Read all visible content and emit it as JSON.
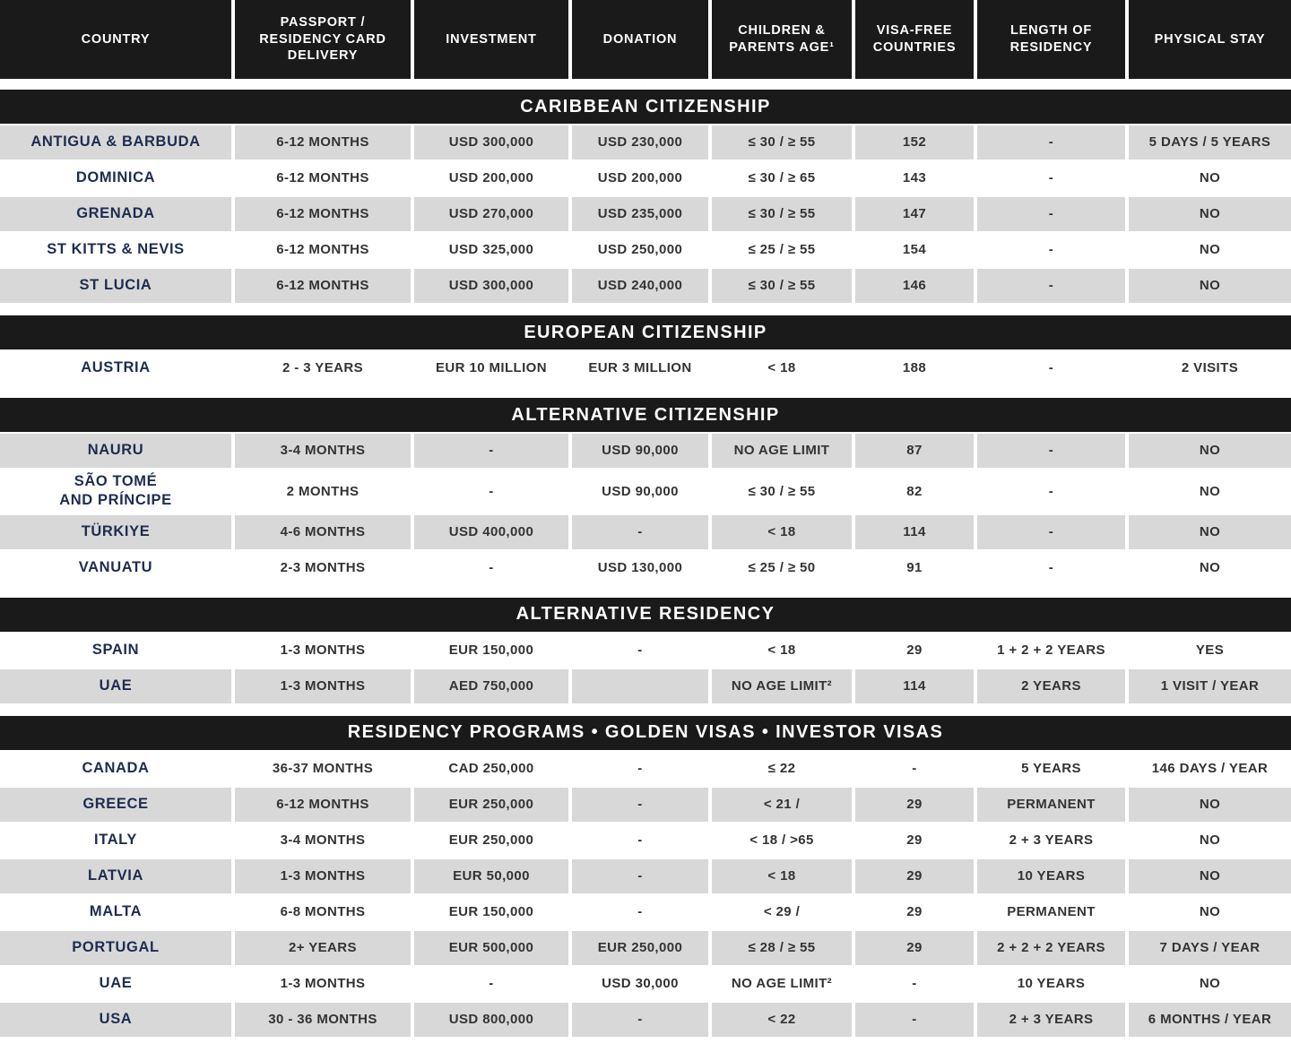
{
  "colors": {
    "banner_background": "#1a1a1a",
    "banner_text": "#ffffff",
    "row_shaded": "#d8d8d8",
    "row_plain": "#ffffff",
    "country_text": "#1d2d50",
    "data_text": "#333333"
  },
  "chart_data": {
    "type": "table",
    "columns": [
      "COUNTRY",
      "PASSPORT /\nRESIDENCY CARD\nDELIVERY",
      "INVESTMENT",
      "DONATION",
      "CHILDREN &\nPARENTS AGE¹",
      "VISA-FREE\nCOUNTRIES",
      "LENGTH OF\nRESIDENCY",
      "PHYSICAL STAY"
    ],
    "sections": [
      {
        "title": "CARIBBEAN CITIZENSHIP",
        "first_row_shaded": true,
        "rows": [
          {
            "cells": [
              "ANTIGUA & BARBUDA",
              "6-12 MONTHS",
              "USD 300,000",
              "USD 230,000",
              "≤ 30 / ≥ 55",
              "152",
              "-",
              "5 DAYS / 5 YEARS"
            ]
          },
          {
            "cells": [
              "DOMINICA",
              "6-12 MONTHS",
              "USD 200,000",
              "USD 200,000",
              "≤ 30 / ≥ 65",
              "143",
              "-",
              "NO"
            ]
          },
          {
            "cells": [
              "GRENADA",
              "6-12 MONTHS",
              "USD 270,000",
              "USD 235,000",
              "≤ 30 / ≥ 55",
              "147",
              "-",
              "NO"
            ]
          },
          {
            "cells": [
              "ST KITTS & NEVIS",
              "6-12 MONTHS",
              "USD 325,000",
              "USD 250,000",
              "≤ 25 / ≥ 55",
              "154",
              "-",
              "NO"
            ]
          },
          {
            "cells": [
              "ST LUCIA",
              "6-12 MONTHS",
              "USD 300,000",
              "USD 240,000",
              "≤ 30 / ≥ 55",
              "146",
              "-",
              "NO"
            ]
          }
        ]
      },
      {
        "title": "EUROPEAN CITIZENSHIP",
        "first_row_shaded": false,
        "rows": [
          {
            "cells": [
              "AUSTRIA",
              "2 - 3 YEARS",
              "EUR 10 MILLION",
              "EUR 3 MILLION",
              "< 18",
              "188",
              "-",
              "2 VISITS"
            ]
          }
        ]
      },
      {
        "title": "ALTERNATIVE CITIZENSHIP",
        "first_row_shaded": true,
        "rows": [
          {
            "cells": [
              "NAURU",
              "3-4 MONTHS",
              "-",
              "USD 90,000",
              "NO AGE LIMIT",
              "87",
              "-",
              "NO"
            ]
          },
          {
            "cells": [
              "SÃO TOMÉ\nAND PRÍNCIPE",
              "2 MONTHS",
              "-",
              "USD 90,000",
              "≤ 30 / ≥ 55",
              "82",
              "-",
              "NO"
            ]
          },
          {
            "cells": [
              "TÜRKIYE",
              "4-6 MONTHS",
              "USD 400,000",
              "-",
              "< 18",
              "114",
              "-",
              "NO"
            ]
          },
          {
            "cells": [
              "VANUATU",
              "2-3 MONTHS",
              "-",
              "USD 130,000",
              "≤ 25 / ≥ 50",
              "91",
              "-",
              "NO"
            ]
          }
        ]
      },
      {
        "title": "ALTERNATIVE RESIDENCY",
        "first_row_shaded": false,
        "rows": [
          {
            "cells": [
              "SPAIN",
              "1-3 MONTHS",
              "EUR 150,000",
              "-",
              "< 18",
              "29",
              "1 + 2 + 2 YEARS",
              "YES"
            ]
          },
          {
            "cells": [
              "UAE",
              "1-3 MONTHS",
              "AED 750,000",
              "",
              "NO AGE LIMIT²",
              "114",
              "2 YEARS",
              "1 VISIT / YEAR"
            ]
          }
        ]
      },
      {
        "title": "RESIDENCY PROGRAMS • GOLDEN VISAS • INVESTOR VISAS",
        "first_row_shaded": false,
        "rows": [
          {
            "cells": [
              "CANADA",
              "36-37 MONTHS",
              "CAD 250,000",
              "-",
              "≤ 22",
              "-",
              "5 YEARS",
              "146 DAYS / YEAR"
            ]
          },
          {
            "cells": [
              "GREECE",
              "6-12 MONTHS",
              "EUR 250,000",
              "-",
              "< 21 /",
              "29",
              "PERMANENT",
              "NO"
            ]
          },
          {
            "cells": [
              "ITALY",
              "3-4 MONTHS",
              "EUR 250,000",
              "-",
              "< 18 / >65",
              "29",
              "2 + 3 YEARS",
              "NO"
            ]
          },
          {
            "cells": [
              "LATVIA",
              "1-3 MONTHS",
              "EUR 50,000",
              "-",
              "< 18",
              "29",
              "10 YEARS",
              "NO"
            ]
          },
          {
            "cells": [
              "MALTA",
              "6-8 MONTHS",
              "EUR 150,000",
              "-",
              "< 29 /",
              "29",
              "PERMANENT",
              "NO"
            ]
          },
          {
            "cells": [
              "PORTUGAL",
              "2+ YEARS",
              "EUR 500,000",
              "EUR 250,000",
              "≤ 28 / ≥ 55",
              "29",
              "2 + 2 + 2 YEARS",
              "7 DAYS / YEAR"
            ]
          },
          {
            "cells": [
              "UAE",
              "1-3 MONTHS",
              "-",
              "USD 30,000",
              "NO AGE LIMIT²",
              "-",
              "10 YEARS",
              "NO"
            ]
          },
          {
            "cells": [
              "USA",
              "30 - 36 MONTHS",
              "USD 800,000",
              "-",
              "< 22",
              "-",
              "2 + 3 YEARS",
              "6 MONTHS / YEAR"
            ]
          }
        ]
      }
    ]
  }
}
